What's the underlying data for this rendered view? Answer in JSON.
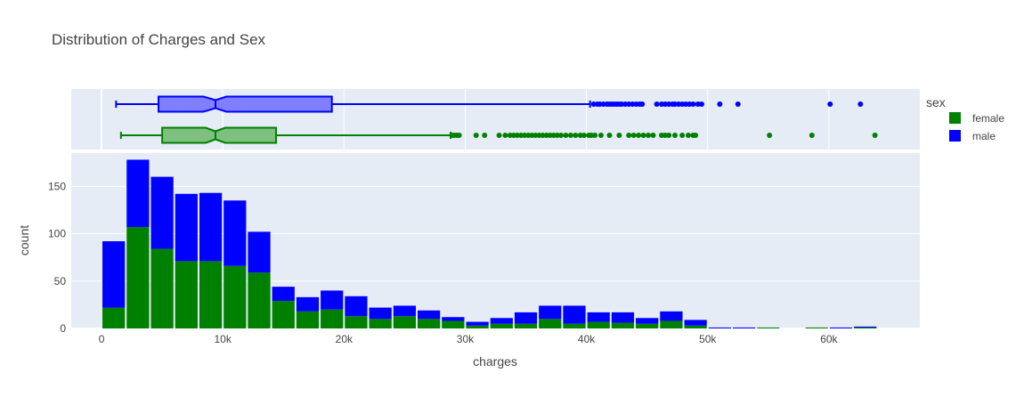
{
  "chart_data": {
    "type": "bar",
    "title": "Distribution of Charges and Sex",
    "xlabel": "charges",
    "ylabel": "count",
    "xlim": [
      -2500,
      67500
    ],
    "ylim": [
      0,
      185
    ],
    "x_ticks": [
      0,
      10000,
      20000,
      30000,
      40000,
      50000,
      60000
    ],
    "x_tick_labels": [
      "0",
      "10k",
      "20k",
      "30k",
      "40k",
      "50k",
      "60k"
    ],
    "y_ticks": [
      0,
      50,
      100,
      150
    ],
    "y_tick_labels": [
      "0",
      "50",
      "100",
      "150"
    ],
    "barmode": "stack",
    "bin_size": 2000,
    "bin_starts": [
      0,
      2000,
      4000,
      6000,
      8000,
      10000,
      12000,
      14000,
      16000,
      18000,
      20000,
      22000,
      24000,
      26000,
      28000,
      30000,
      32000,
      34000,
      36000,
      38000,
      40000,
      42000,
      44000,
      46000,
      48000,
      50000,
      52000,
      54000,
      56000,
      58000,
      60000,
      62000
    ],
    "legend": {
      "title": "sex",
      "position": "right",
      "entries": [
        "female",
        "male"
      ]
    },
    "series": [
      {
        "name": "female",
        "color": "#008000",
        "values": [
          22,
          107,
          84,
          71,
          71,
          66,
          59,
          29,
          18,
          20,
          13,
          10,
          13,
          10,
          8,
          3,
          5,
          5,
          10,
          5,
          7,
          6,
          5,
          8,
          3,
          0,
          0,
          1,
          0,
          1,
          0,
          1
        ]
      },
      {
        "name": "male",
        "color": "#0000ff",
        "values": [
          70,
          71,
          76,
          71,
          72,
          69,
          43,
          15,
          15,
          20,
          21,
          12,
          11,
          9,
          4,
          4,
          6,
          12,
          14,
          19,
          10,
          11,
          6,
          10,
          6,
          1,
          1,
          0,
          0,
          0,
          1,
          1
        ]
      }
    ],
    "marginal_box": [
      {
        "name": "male",
        "color": "#0000ff",
        "fill": "#7f7fff",
        "min": 1200,
        "q1": 4700,
        "median": 9400,
        "q3": 19000,
        "upperfence": 40300,
        "notch_low": 8400,
        "notch_high": 10300,
        "outliers": [
          40600,
          40900,
          41100,
          41400,
          41700,
          41900,
          42100,
          42300,
          42500,
          42700,
          42900,
          43200,
          43500,
          43800,
          44100,
          44400,
          44600,
          45800,
          46200,
          46500,
          46800,
          47100,
          47300,
          47600,
          47900,
          48200,
          48500,
          48800,
          49200,
          49500,
          51000,
          52500,
          60100,
          62600
        ]
      },
      {
        "name": "female",
        "color": "#008000",
        "fill": "#7fbf7f",
        "min": 1600,
        "q1": 5000,
        "median": 9400,
        "q3": 14400,
        "upperfence": 28800,
        "notch_low": 8600,
        "notch_high": 10200,
        "outliers": [
          28900,
          29100,
          29300,
          29500,
          30900,
          31600,
          32800,
          33300,
          33700,
          34000,
          34300,
          34600,
          34900,
          35200,
          35500,
          35800,
          36100,
          36400,
          36700,
          37000,
          37300,
          37600,
          37900,
          38300,
          38700,
          39100,
          39500,
          39800,
          40200,
          40400,
          40700,
          41200,
          41900,
          42700,
          43500,
          43900,
          44300,
          44700,
          45100,
          45500,
          46200,
          46500,
          46800,
          47300,
          47900,
          48400,
          48800,
          49000,
          55100,
          58600,
          63800
        ]
      }
    ]
  }
}
